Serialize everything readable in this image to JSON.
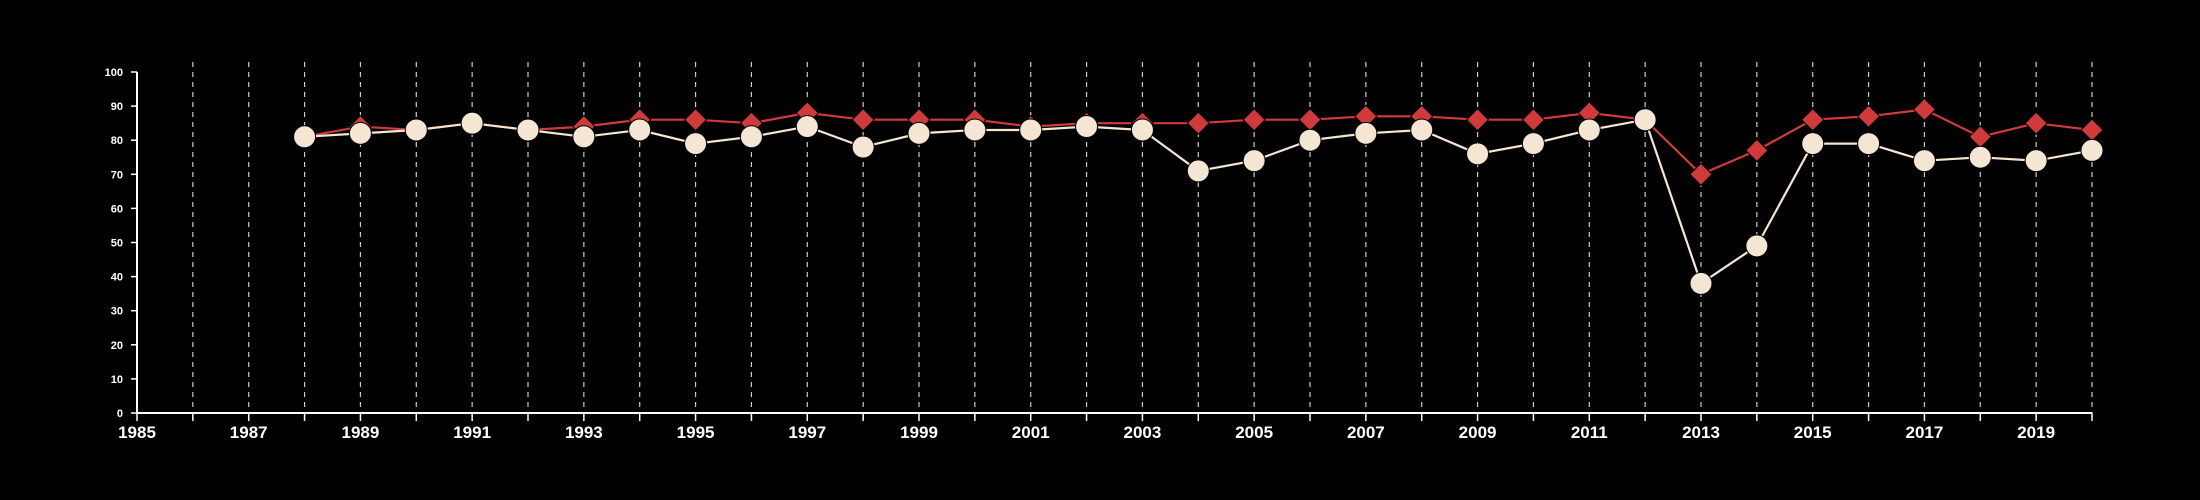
{
  "chart_data": {
    "type": "line",
    "title": "",
    "xlabel": "",
    "ylabel": "",
    "xlim": [
      1985,
      2020
    ],
    "ylim": [
      0,
      100
    ],
    "x_ticks": [
      1985,
      1987,
      1989,
      1991,
      1993,
      1995,
      1997,
      1999,
      2001,
      2003,
      2005,
      2007,
      2009,
      2011,
      2013,
      2015,
      2017,
      2019
    ],
    "y_ticks": [
      0,
      10,
      20,
      30,
      40,
      50,
      60,
      70,
      80,
      90,
      100
    ],
    "grid": "vertical dashed, every year",
    "legend": "none",
    "x": [
      1988,
      1989,
      1990,
      1991,
      1992,
      1993,
      1994,
      1995,
      1996,
      1997,
      1998,
      1999,
      2000,
      2001,
      2002,
      2003,
      2004,
      2005,
      2006,
      2007,
      2008,
      2009,
      2010,
      2011,
      2012,
      2013,
      2014,
      2015,
      2016,
      2017,
      2018,
      2019,
      2020
    ],
    "series": [
      {
        "marker": "diamond",
        "color": "#d03a3a",
        "values": [
          81,
          84,
          83,
          85,
          83,
          84,
          86,
          86,
          85,
          88,
          86,
          86,
          86,
          84,
          85,
          85,
          85,
          86,
          86,
          87,
          87,
          86,
          86,
          88,
          86,
          70,
          77,
          86,
          87,
          89,
          81,
          85,
          83
        ]
      },
      {
        "marker": "circle",
        "color": "#f5e6d3",
        "values": [
          81,
          82,
          83,
          85,
          83,
          81,
          83,
          79,
          81,
          84,
          78,
          82,
          83,
          83,
          84,
          83,
          71,
          74,
          80,
          82,
          83,
          76,
          79,
          83,
          86,
          38,
          49,
          79,
          79,
          74,
          75,
          74,
          77
        ]
      }
    ]
  }
}
